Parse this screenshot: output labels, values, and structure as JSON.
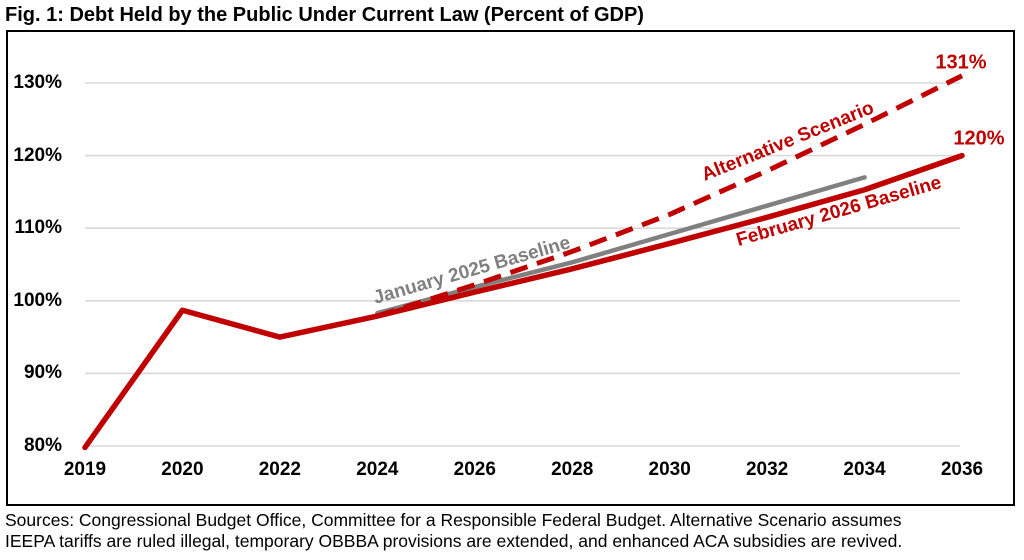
{
  "title": "Fig. 1: Debt Held by the Public Under Current Law (Percent of GDP)",
  "source_note": {
    "line1": "Sources: Congressional Budget Office, Committee for a Responsible Federal Budget. Alternative Scenario assumes",
    "line2": "IEEPA tariffs are ruled illegal, temporary OBBBA provisions are extended, and enhanced ACA subsidies are revived."
  },
  "annotations": {
    "january_2025_baseline": "January 2025 Baseline",
    "alternative_scenario": "Alternative Scenario",
    "february_2026_baseline": "February 2026 Baseline",
    "alt_end_value": "131%",
    "feb_end_value": "120%"
  },
  "colors": {
    "line_red": "#C00000",
    "line_gray": "#808080",
    "gridline": "#D9D9D9",
    "plot_border": "#000000",
    "text": "#000000"
  },
  "chart_data": {
    "type": "line",
    "title": "Fig. 1: Debt Held by the Public Under Current Law (Percent of GDP)",
    "xlabel": "",
    "ylabel": "",
    "grid": true,
    "legend_position": "inline-rotated-labels",
    "categories": [
      "2019",
      "2020",
      "2022",
      "2024",
      "2026",
      "2028",
      "2030",
      "2032",
      "2034",
      "2036"
    ],
    "y_tick_labels": [
      "130%",
      "120%",
      "110%",
      "100%",
      "90%",
      "80%"
    ],
    "y_tick_values": [
      130,
      120,
      110,
      100,
      90,
      80
    ],
    "ylim": [
      80,
      130
    ],
    "series": [
      {
        "name": "February 2026 Baseline",
        "color": "#C00000",
        "style": "solid",
        "z": 2,
        "start_category_index": 0,
        "values": [
          79.8,
          98.7,
          95.0,
          97.9,
          101.2,
          104.4,
          107.9,
          111.5,
          115.3,
          120.0
        ],
        "end_label": "120%"
      },
      {
        "name": "January 2025 Baseline",
        "color": "#808080",
        "style": "solid",
        "z": 1,
        "start_category_index": 3,
        "values": [
          98.3,
          101.9,
          105.3,
          109.2,
          113.1,
          117.0
        ],
        "end_label": ""
      },
      {
        "name": "Alternative Scenario",
        "color": "#C00000",
        "style": "dashed",
        "z": 3,
        "start_category_index": 3,
        "values": [
          97.9,
          102.2,
          106.8,
          111.9,
          117.9,
          124.3,
          131.0
        ],
        "end_label": "131%"
      }
    ]
  }
}
